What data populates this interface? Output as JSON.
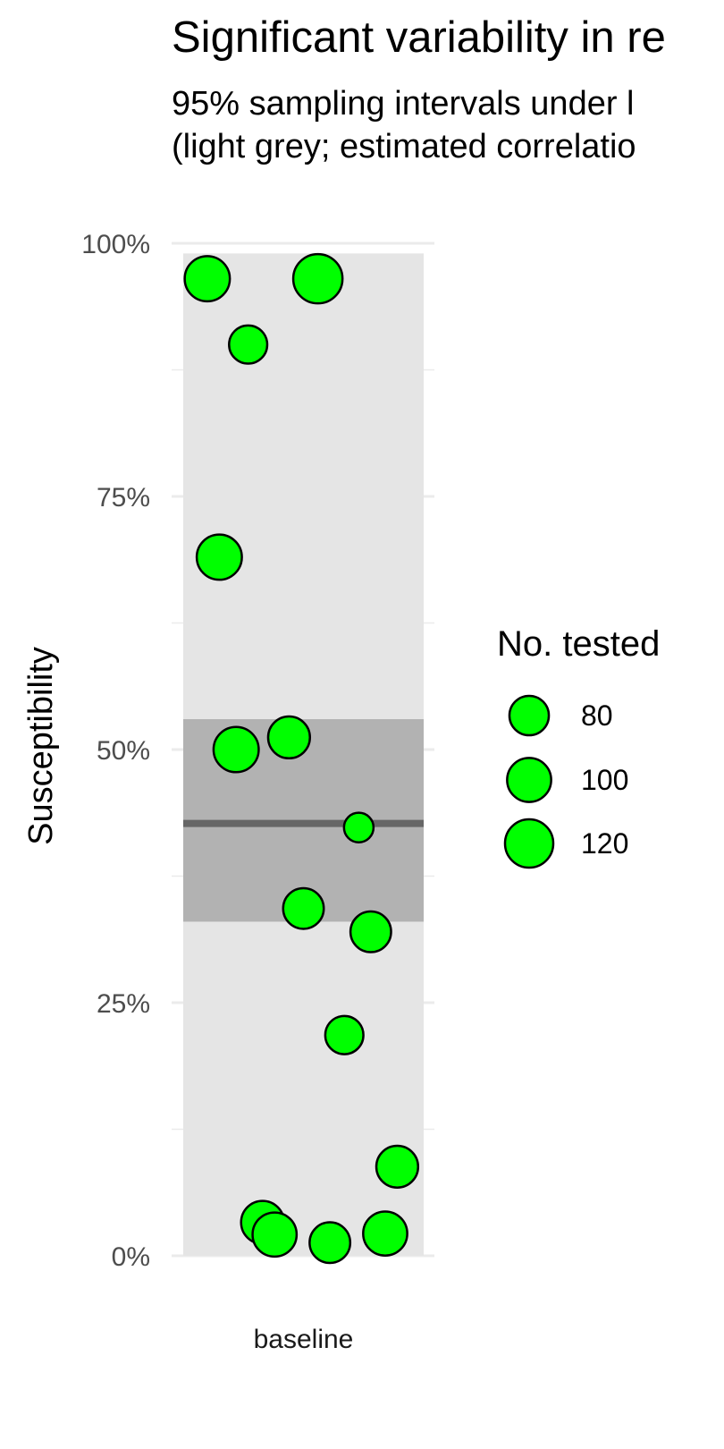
{
  "chart_data": {
    "type": "scatter",
    "title": "Significant variability in re",
    "subtitle": "95% sampling intervals under l\n(light grey; estimated correlatio",
    "ylabel": "Susceptibility",
    "xlabel": "",
    "categories": [
      "baseline"
    ],
    "ylim": [
      0,
      100
    ],
    "y_ticks": [
      "0%",
      "25%",
      "50%",
      "75%",
      "100%"
    ],
    "y_tick_values": [
      0,
      25,
      50,
      75,
      100
    ],
    "grid": true,
    "sampling_interval_light": [
      0,
      99
    ],
    "sampling_interval_dark": [
      33,
      53
    ],
    "mean_line": 42.7,
    "points": [
      {
        "x": 0.1,
        "y": 96.5,
        "n": 105
      },
      {
        "x": 0.27,
        "y": 90.0,
        "n": 75
      },
      {
        "x": 0.56,
        "y": 96.5,
        "n": 125
      },
      {
        "x": 0.15,
        "y": 69.0,
        "n": 105
      },
      {
        "x": 0.22,
        "y": 50.0,
        "n": 105
      },
      {
        "x": 0.44,
        "y": 51.2,
        "n": 90
      },
      {
        "x": 0.73,
        "y": 42.3,
        "n": 45
      },
      {
        "x": 0.5,
        "y": 34.3,
        "n": 85
      },
      {
        "x": 0.78,
        "y": 32.0,
        "n": 85
      },
      {
        "x": 0.67,
        "y": 21.8,
        "n": 75
      },
      {
        "x": 0.89,
        "y": 8.8,
        "n": 90
      },
      {
        "x": 0.33,
        "y": 3.3,
        "n": 95
      },
      {
        "x": 0.38,
        "y": 2.1,
        "n": 100
      },
      {
        "x": 0.61,
        "y": 1.3,
        "n": 85
      },
      {
        "x": 0.84,
        "y": 2.2,
        "n": 100
      }
    ],
    "point_color": "#00FF00",
    "point_stroke": "#000000",
    "legend": {
      "title": "No. tested",
      "position": "right",
      "entries": [
        {
          "label": "80",
          "n": 80
        },
        {
          "label": "100",
          "n": 100
        },
        {
          "label": "120",
          "n": 120
        }
      ]
    }
  },
  "colors": {
    "light_band": "#E5E5E5",
    "dark_band": "#B2B2B2",
    "mean_line": "#666666",
    "grid": "#EBEBEB",
    "tick_text": "#4D4D4D"
  }
}
